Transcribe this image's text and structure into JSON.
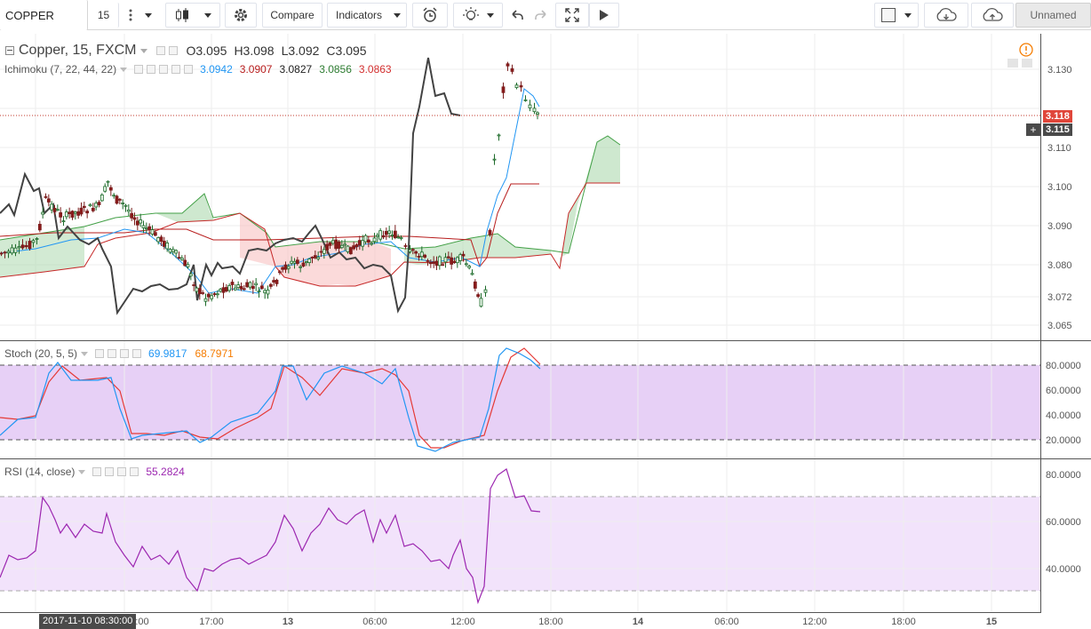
{
  "toolbar": {
    "symbol": "COPPER",
    "interval": "15",
    "compare_label": "Compare",
    "indicators_label": "Indicators",
    "layout_name": "Unnamed"
  },
  "header": {
    "symbol_title": "Copper, 15, FXCM",
    "open": "O3.095",
    "high": "H3.098",
    "low": "L3.092",
    "close": "C3.095"
  },
  "ichimoku": {
    "title": "Ichimoku (7, 22, 44, 22)",
    "values": [
      "3.0942",
      "3.0907",
      "3.0827",
      "3.0856",
      "3.0863"
    ],
    "colors": [
      "#2196f3",
      "#b71c1c",
      "#212121",
      "#2e7d32",
      "#d32f2f"
    ]
  },
  "stoch": {
    "title": "Stoch (20, 5, 5)",
    "k": "69.9817",
    "d": "68.7971",
    "k_color": "#2196f3",
    "d_color": "#f57c00"
  },
  "rsi": {
    "title": "RSI (14, close)",
    "value": "55.2824",
    "color": "#9c27b0"
  },
  "price_axis": [
    "3.130",
    "3.120",
    "3.110",
    "3.100",
    "3.090",
    "3.080",
    "3.072",
    "3.065"
  ],
  "price_tags": {
    "last": "3.118",
    "cursor": "3.115"
  },
  "stoch_axis": [
    "80.0000",
    "60.0000",
    "40.0000",
    "20.0000"
  ],
  "rsi_axis": [
    "80.0000",
    "60.0000",
    "40.0000"
  ],
  "time_axis": [
    "2017-11-10 08:30:00",
    ":00",
    "17:00",
    "13",
    "06:00",
    "12:00",
    "18:00",
    "14",
    "06:00",
    "12:00",
    "18:00",
    "15"
  ]
}
